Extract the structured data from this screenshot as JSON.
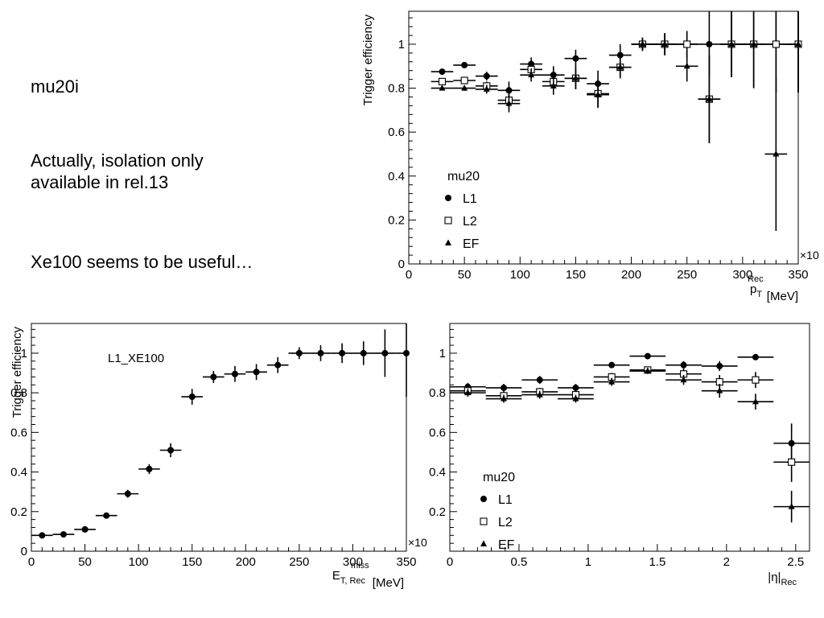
{
  "notes": [
    {
      "lines": [
        "mu20i"
      ]
    },
    {
      "lines": [
        "Actually, isolation only",
        "available in rel.13"
      ]
    },
    {
      "lines": [
        "Xe100 seems to be useful…"
      ]
    }
  ],
  "chart_data": [
    {
      "type": "scatter",
      "ylabel": "Trigger efficiency",
      "xlabel": {
        "main": "p",
        "sub": "T",
        "sup": "Rec",
        "unit": " [MeV]"
      },
      "multiplier": "×10",
      "xlim": [
        0,
        350
      ],
      "ylim": [
        0,
        1.15
      ],
      "xticks": [
        0,
        50,
        100,
        150,
        200,
        250,
        300,
        350
      ],
      "yticks": [
        0,
        0.2,
        0.4,
        0.6,
        0.8,
        1
      ],
      "legend": {
        "title": "mu20",
        "position": "bottom-left",
        "entries": [
          "L1",
          "L2",
          "EF"
        ]
      },
      "xerr": 10,
      "series": [
        {
          "name": "L1",
          "marker": "circle",
          "x": [
            30,
            50,
            70,
            90,
            110,
            130,
            150,
            170,
            190,
            210,
            230,
            250,
            270,
            290,
            310,
            330,
            350
          ],
          "y": [
            0.875,
            0.905,
            0.855,
            0.79,
            0.91,
            0.86,
            0.935,
            0.82,
            0.95,
            1.0,
            1.0,
            1.0,
            1.0,
            1.0,
            1.0,
            1.0,
            1.0
          ],
          "err": [
            0.01,
            0.012,
            0.02,
            0.04,
            0.03,
            0.04,
            0.04,
            0.06,
            0.05,
            0.03,
            0.05,
            0.06,
            0.15,
            0.15,
            0.2,
            0.22,
            0.22
          ]
        },
        {
          "name": "L2",
          "marker": "square",
          "x": [
            30,
            50,
            70,
            90,
            110,
            130,
            150,
            170,
            190,
            210,
            230,
            250,
            270,
            290,
            310,
            330,
            350
          ],
          "y": [
            0.83,
            0.835,
            0.81,
            0.745,
            0.885,
            0.83,
            0.845,
            0.775,
            0.895,
            1.0,
            1.0,
            1.0,
            0.75,
            1.0,
            1.0,
            1.0,
            1.0
          ],
          "err": [
            0.01,
            0.012,
            0.02,
            0.04,
            0.03,
            0.04,
            0.05,
            0.06,
            0.05,
            0.03,
            0.05,
            0.06,
            0.2,
            0.15,
            0.2,
            0.22,
            0.22
          ]
        },
        {
          "name": "EF",
          "marker": "triangle",
          "x": [
            30,
            50,
            70,
            90,
            110,
            130,
            150,
            170,
            190,
            210,
            230,
            250,
            270,
            290,
            310,
            330,
            350
          ],
          "y": [
            0.8,
            0.8,
            0.795,
            0.73,
            0.86,
            0.81,
            0.845,
            0.77,
            0.895,
            1.0,
            1.0,
            0.9,
            0.75,
            1.0,
            1.0,
            0.5,
            1.0
          ],
          "err": [
            0.01,
            0.012,
            0.02,
            0.04,
            0.03,
            0.04,
            0.05,
            0.06,
            0.05,
            0.03,
            0.05,
            0.07,
            0.2,
            0.15,
            0.2,
            0.35,
            0.22
          ]
        }
      ]
    },
    {
      "type": "scatter",
      "ylabel": "Trigger efficiency",
      "xlabel": {
        "main": "E",
        "sub": "T, Rec",
        "sup": "miss",
        "unit": " [MeV]"
      },
      "multiplier": "×10",
      "annotation": "L1_XE100",
      "xlim": [
        0,
        350
      ],
      "ylim": [
        0,
        1.15
      ],
      "xticks": [
        0,
        50,
        100,
        150,
        200,
        250,
        300,
        350
      ],
      "yticks": [
        0,
        0.2,
        0.4,
        0.6,
        0.8,
        1
      ],
      "xerr": 10,
      "series": [
        {
          "name": "L1_XE100",
          "marker": "circle",
          "x": [
            10,
            30,
            50,
            70,
            90,
            110,
            130,
            150,
            170,
            190,
            210,
            230,
            250,
            270,
            290,
            310,
            330,
            350
          ],
          "y": [
            0.08,
            0.085,
            0.11,
            0.18,
            0.29,
            0.415,
            0.51,
            0.78,
            0.88,
            0.895,
            0.905,
            0.94,
            1.0,
            1.0,
            1.0,
            1.0,
            1.0,
            1.0
          ],
          "err": [
            0.01,
            0.01,
            0.012,
            0.015,
            0.02,
            0.025,
            0.035,
            0.04,
            0.03,
            0.04,
            0.04,
            0.04,
            0.03,
            0.04,
            0.05,
            0.06,
            0.12,
            0.22
          ]
        }
      ]
    },
    {
      "type": "scatter",
      "ylabel": "",
      "xlabel": {
        "main": "|η|",
        "sub": "Rec",
        "sup": "",
        "unit": ""
      },
      "multiplier": "",
      "xlim": [
        0,
        2.6
      ],
      "ylim": [
        0,
        1.15
      ],
      "xticks": [
        0,
        0.5,
        1,
        1.5,
        2,
        2.5
      ],
      "yticks": [
        0.2,
        0.4,
        0.6,
        0.8,
        1
      ],
      "legend": {
        "title": "mu20",
        "position": "bottom-left",
        "entries": [
          "L1",
          "L2",
          "EF"
        ]
      },
      "xerr": 0.13,
      "series": [
        {
          "name": "L1",
          "marker": "circle",
          "x": [
            0.13,
            0.39,
            0.65,
            0.91,
            1.17,
            1.43,
            1.69,
            1.95,
            2.21,
            2.47
          ],
          "y": [
            0.83,
            0.825,
            0.865,
            0.825,
            0.94,
            0.985,
            0.94,
            0.935,
            0.98,
            0.545
          ],
          "err": [
            0.02,
            0.02,
            0.02,
            0.02,
            0.015,
            0.01,
            0.02,
            0.025,
            0.01,
            0.1
          ]
        },
        {
          "name": "L2",
          "marker": "square",
          "x": [
            0.13,
            0.39,
            0.65,
            0.91,
            1.17,
            1.43,
            1.69,
            1.95,
            2.21,
            2.47
          ],
          "y": [
            0.81,
            0.785,
            0.805,
            0.79,
            0.88,
            0.915,
            0.895,
            0.855,
            0.865,
            0.45
          ],
          "err": [
            0.02,
            0.02,
            0.02,
            0.02,
            0.02,
            0.015,
            0.025,
            0.035,
            0.04,
            0.1
          ]
        },
        {
          "name": "EF",
          "marker": "triangle",
          "x": [
            0.13,
            0.39,
            0.65,
            0.91,
            1.17,
            1.43,
            1.69,
            1.95,
            2.21,
            2.47
          ],
          "y": [
            0.8,
            0.77,
            0.79,
            0.77,
            0.855,
            0.91,
            0.865,
            0.81,
            0.755,
            0.225
          ],
          "err": [
            0.02,
            0.02,
            0.02,
            0.02,
            0.02,
            0.015,
            0.025,
            0.035,
            0.04,
            0.08
          ]
        }
      ]
    }
  ]
}
